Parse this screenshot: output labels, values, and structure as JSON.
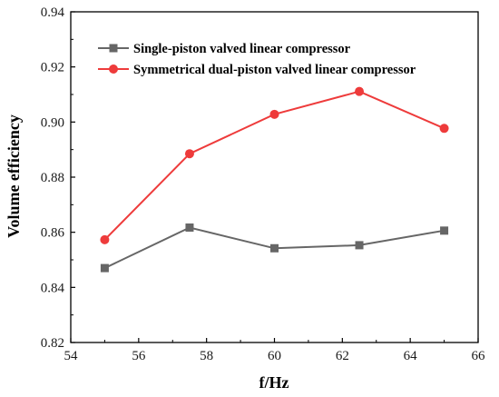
{
  "chart_data": {
    "type": "line",
    "xlabel": "f/Hz",
    "ylabel": "Volume efficiency",
    "xlim": [
      54,
      66
    ],
    "ylim": [
      0.82,
      0.94
    ],
    "xticks": [
      "54",
      "56",
      "58",
      "60",
      "62",
      "64",
      "66"
    ],
    "yticks": [
      "0.82",
      "0.84",
      "0.86",
      "0.88",
      "0.90",
      "0.92",
      "0.94"
    ],
    "grid": false,
    "legend_position": "top-left",
    "series": [
      {
        "name": "Single-piston valved linear compressor",
        "color": "#666666",
        "marker": "square",
        "x": [
          55,
          57.5,
          60,
          62.5,
          65
        ],
        "y": [
          0.847,
          0.8617,
          0.8542,
          0.8553,
          0.8606
        ]
      },
      {
        "name": "Symmetrical dual-piston valved linear compressor",
        "color": "#ee3b3b",
        "marker": "circle",
        "x": [
          55,
          57.5,
          60,
          62.5,
          65
        ],
        "y": [
          0.8573,
          0.8885,
          0.9028,
          0.9111,
          0.8977
        ]
      }
    ]
  }
}
